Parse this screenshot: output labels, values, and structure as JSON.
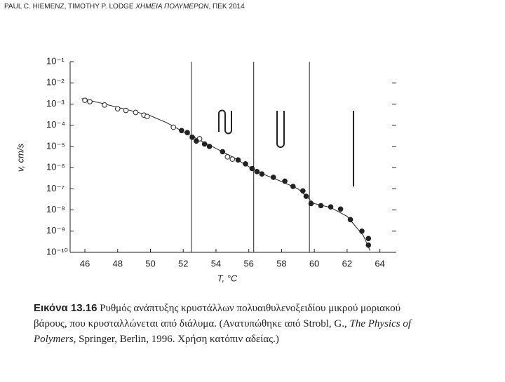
{
  "header": {
    "authors": "PAUL C. HIEMENZ, TIMOTHY P. LODGE",
    "book": "ΧΗΜΕΙΑ ΠΟΛΥΜΕΡΩΝ",
    "publisher": ", ΠΕΚ 2014"
  },
  "chart_data": {
    "type": "scatter",
    "ylabel": "v, cm/s",
    "xlabel": "T, °C",
    "yscale": "log",
    "xlim": [
      45.1,
      65.0
    ],
    "ylim": [
      1e-10,
      0.1
    ],
    "xticks": [
      46,
      48,
      50,
      52,
      54,
      56,
      58,
      60,
      62,
      64
    ],
    "yticks": [
      {
        "value": 0.1,
        "label": "10⁻¹"
      },
      {
        "value": 0.01,
        "label": "10⁻²"
      },
      {
        "value": 0.001,
        "label": "10⁻³"
      },
      {
        "value": 0.0001,
        "label": "10⁻⁴"
      },
      {
        "value": 1e-05,
        "label": "10⁻⁵"
      },
      {
        "value": 1e-06,
        "label": "10⁻⁶"
      },
      {
        "value": 1e-07,
        "label": "10⁻⁷"
      },
      {
        "value": 1e-08,
        "label": "10⁻⁸"
      },
      {
        "value": 1e-09,
        "label": "10⁻⁹"
      },
      {
        "value": 1e-10,
        "label": "10⁻¹⁰"
      }
    ],
    "vlines": [
      52.5,
      56.3,
      59.7
    ],
    "series": [
      {
        "marker": "line",
        "color": "#222",
        "x": [
          45.8,
          47,
          48,
          49,
          50,
          51,
          52,
          53,
          54,
          55,
          56,
          57,
          58,
          59,
          60,
          61,
          62,
          63,
          63.4
        ],
        "values": [
          0.0018,
          0.0011,
          0.0007,
          0.00045,
          0.00028,
          0.00013,
          5e-05,
          2e-05,
          8e-06,
          3.2e-06,
          1.1e-06,
          4.5e-07,
          2.2e-07,
          1e-07,
          2e-08,
          1.3e-08,
          5e-09,
          6e-10,
          1.2e-10
        ]
      },
      {
        "marker": "open",
        "color": "#222",
        "x": [
          46.0,
          46.3,
          47.2,
          48.0,
          48.5,
          49.1,
          49.6,
          49.8,
          51.4,
          53.0,
          54.7,
          55.0
        ],
        "values": [
          0.0015,
          0.0013,
          0.0009,
          0.0006,
          0.0005,
          0.0004,
          0.0003,
          0.00026,
          8e-05,
          2.3e-05,
          3.2e-06,
          2.5e-06
        ]
      },
      {
        "marker": "filled",
        "color": "#222",
        "x": [
          51.9,
          52.25,
          52.55,
          52.8,
          53.3,
          53.6,
          54.4,
          55.35,
          55.8,
          56.2,
          56.5,
          56.8,
          57.5,
          58.2,
          58.7,
          59.3,
          59.5,
          59.8,
          60.4,
          61.0,
          61.6,
          62.2,
          62.9,
          63.3,
          63.3
        ],
        "values": [
          5.6e-05,
          4.5e-05,
          2.7e-05,
          1.8e-05,
          1.3e-05,
          1e-05,
          5.6e-06,
          2.3e-06,
          1.5e-06,
          9e-07,
          6.5e-07,
          5e-07,
          3.5e-07,
          2.3e-07,
          1.3e-07,
          8e-08,
          4.4e-08,
          2e-08,
          1.6e-08,
          1.4e-08,
          1.1e-08,
          3.5e-09,
          1e-09,
          4.5e-10,
          2.2e-10
        ]
      }
    ]
  },
  "caption": {
    "label": "Εικόνα 13.16",
    "text1": "Ρυθμός ανάπτυξης κρυστάλλων πολυαιθυλενοξειδίου μικρού μοριακού",
    "text2": "βάρους, που κρυσταλλώνεται από διάλυμα. (Ανατυπώθηκε από Strobl, G., ",
    "italic1": "The Physics of",
    "italic2": "Polymers",
    "text3": ", Springer, Berlin, 1996. Χρήση κατόπιν αδείας.)"
  }
}
